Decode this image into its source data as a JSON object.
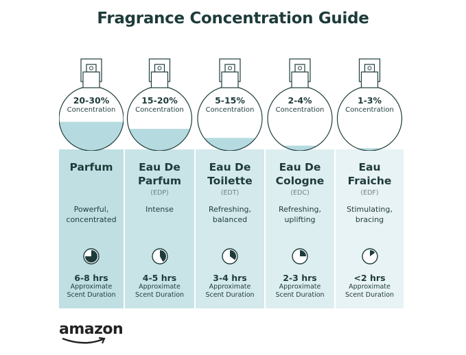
{
  "title": "Fragrance Concentration Guide",
  "concentration_label": "Concentration",
  "duration_label": [
    "Approximate",
    "Scent Duration"
  ],
  "colors": {
    "panel_start": "#bfdfe2",
    "panel_end": "#e8f3f5",
    "liquid": "#b5dbe0",
    "ink": "#1d3b3a"
  },
  "types": [
    {
      "percent": "20-30%",
      "name": [
        "Parfum",
        ""
      ],
      "abbr": "",
      "desc": [
        "Powerful,",
        "concentrated"
      ],
      "hours": "6-8 hrs",
      "fill_level": 0.45,
      "clock_fraction": 0.75,
      "panel_color": "#bfdfe2"
    },
    {
      "percent": "15-20%",
      "name": [
        "Eau De",
        "Parfum"
      ],
      "abbr": "(EDP)",
      "desc": [
        "Intense",
        ""
      ],
      "hours": "4-5 hrs",
      "fill_level": 0.34,
      "clock_fraction": 0.42,
      "panel_color": "#c9e4e7"
    },
    {
      "percent": "5-15%",
      "name": [
        "Eau De",
        "Toilette"
      ],
      "abbr": "(EDT)",
      "desc": [
        "Refreshing,",
        "balanced"
      ],
      "hours": "3-4 hrs",
      "fill_level": 0.2,
      "clock_fraction": 0.35,
      "panel_color": "#d3e9ec"
    },
    {
      "percent": "2-4%",
      "name": [
        "Eau De",
        "Cologne"
      ],
      "abbr": "(EDC)",
      "desc": [
        "Refreshing,",
        "uplifting"
      ],
      "hours": "2-3 hrs",
      "fill_level": 0.08,
      "clock_fraction": 0.25,
      "panel_color": "#ddeef0"
    },
    {
      "percent": "1-3%",
      "name": [
        "Eau",
        "Fraiche"
      ],
      "abbr": "(EDF)",
      "desc": [
        "Stimulating,",
        "bracing"
      ],
      "hours": "<2 hrs",
      "fill_level": 0.04,
      "clock_fraction": 0.15,
      "panel_color": "#e8f3f5"
    }
  ],
  "brand": "amazon"
}
